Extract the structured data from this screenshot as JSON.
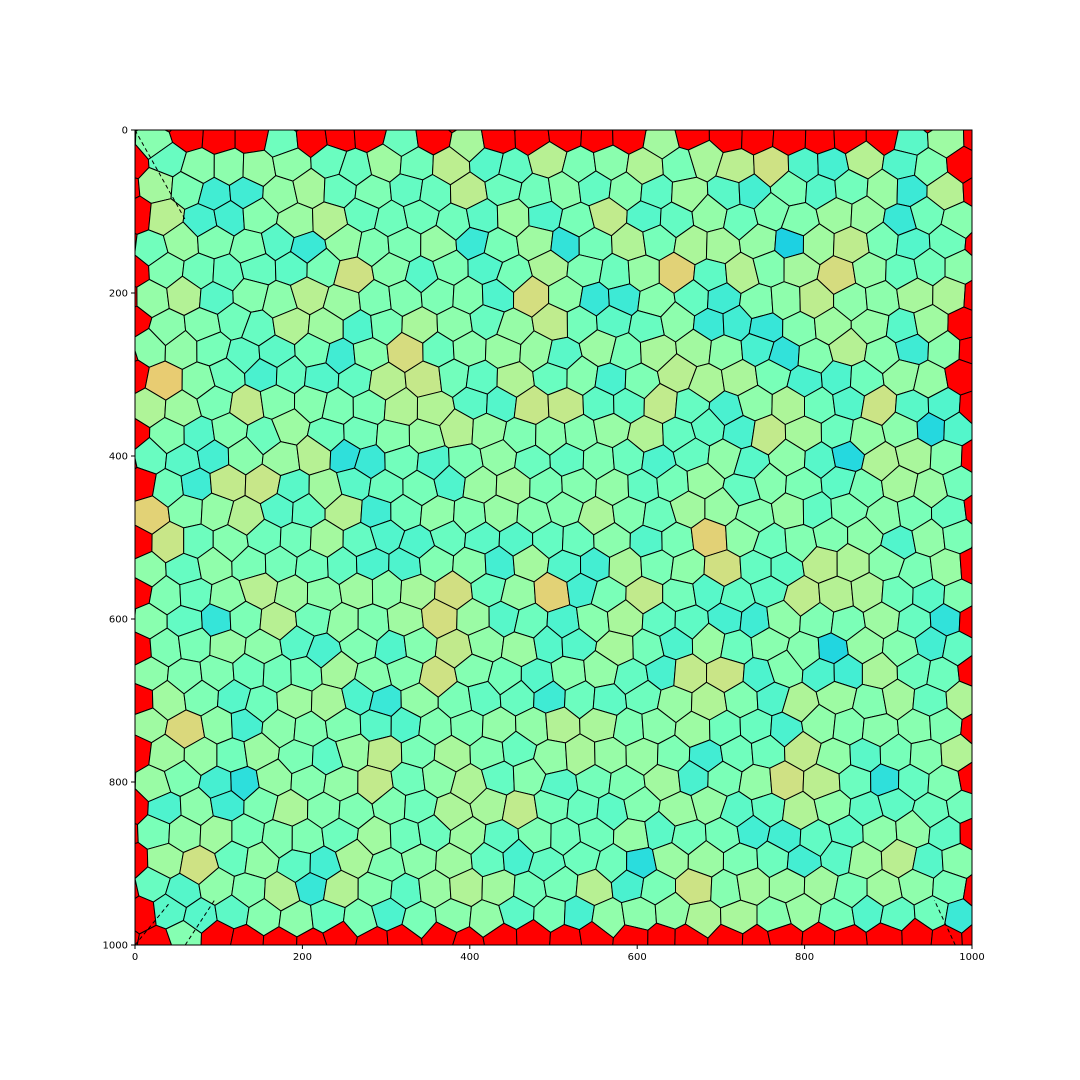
{
  "chart_data": {
    "type": "voronoi",
    "title": "",
    "xlabel": "",
    "ylabel": "",
    "xlim": [
      0,
      1000
    ],
    "ylim": [
      1000,
      0
    ],
    "y_inverted": true,
    "xticks": [
      0,
      200,
      400,
      600,
      800,
      1000
    ],
    "yticks": [
      0,
      200,
      400,
      600,
      800,
      1000
    ],
    "xtick_labels": [
      "0",
      "200",
      "400",
      "600",
      "800",
      "1000"
    ],
    "ytick_labels": [
      "0",
      "200",
      "400",
      "600",
      "800",
      "1000"
    ],
    "colormap": "rainbow",
    "edge_color": "#000000",
    "grid": false,
    "legend": "none",
    "description_of_values": "each cell is coloured by its size: small interior cells green/cyan, large boundary cells red, a few tiny cells violet",
    "lattice_spacing": 38,
    "seed": 7
  }
}
